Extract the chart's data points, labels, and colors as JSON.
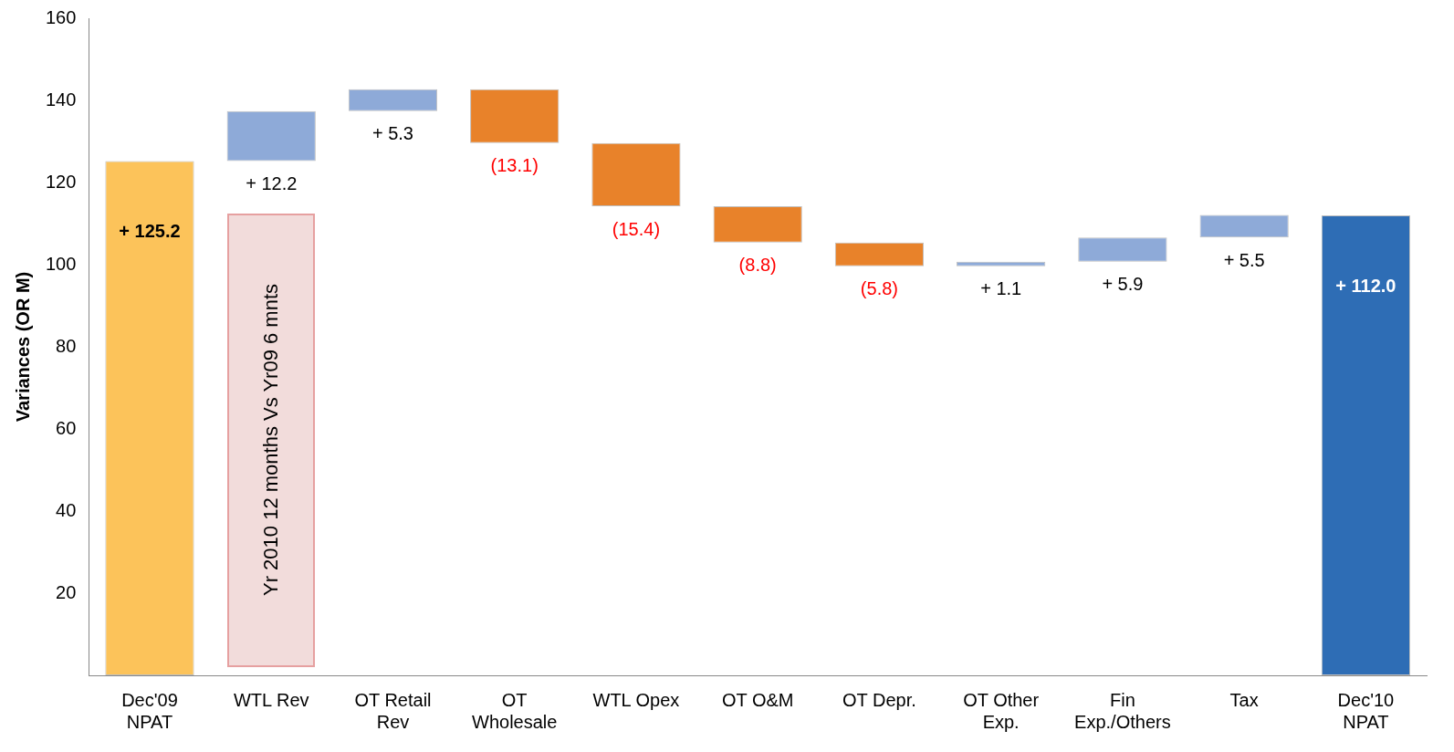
{
  "chart_data": {
    "type": "bar",
    "ylabel": "Variances (OR M)",
    "categories": [
      "Dec'09 NPAT",
      "WTL Rev",
      "OT Retail Rev",
      "OT Wholesale",
      "WTL Opex",
      "OT O&M",
      "OT Depr.",
      "OT Other Exp.",
      "Fin Exp./Others",
      "Tax",
      "Dec'10 NPAT"
    ],
    "base": [
      0,
      125.2,
      137.4,
      142.7,
      129.6,
      114.2,
      105.4,
      99.6,
      100.7,
      106.6,
      0
    ],
    "values": [
      125.2,
      12.2,
      5.3,
      -13.1,
      -15.4,
      -8.8,
      -5.8,
      1.1,
      5.9,
      5.5,
      112.0
    ],
    "colors": [
      "#fcc35a",
      "#8eaad8",
      "#8eaad8",
      "#e8822a",
      "#e8822a",
      "#e8822a",
      "#e8822a",
      "#8eaad8",
      "#8eaad8",
      "#8eaad8",
      "#2e6db5"
    ],
    "value_labels": [
      "+ 125.2",
      "+ 12.2",
      "+ 5.3",
      "(13.1)",
      "(15.4)",
      "(8.8)",
      "(5.8)",
      "+ 1.1",
      "+ 5.9",
      "+ 5.5",
      "+ 112.0"
    ],
    "ylim": [
      0,
      160
    ],
    "yticks": [
      20,
      40,
      60,
      80,
      100,
      120,
      140,
      160
    ],
    "annotations": [
      "Yr 2010 12 months Vs Yr09 6 mnts"
    ],
    "grid": false,
    "legend": false
  }
}
